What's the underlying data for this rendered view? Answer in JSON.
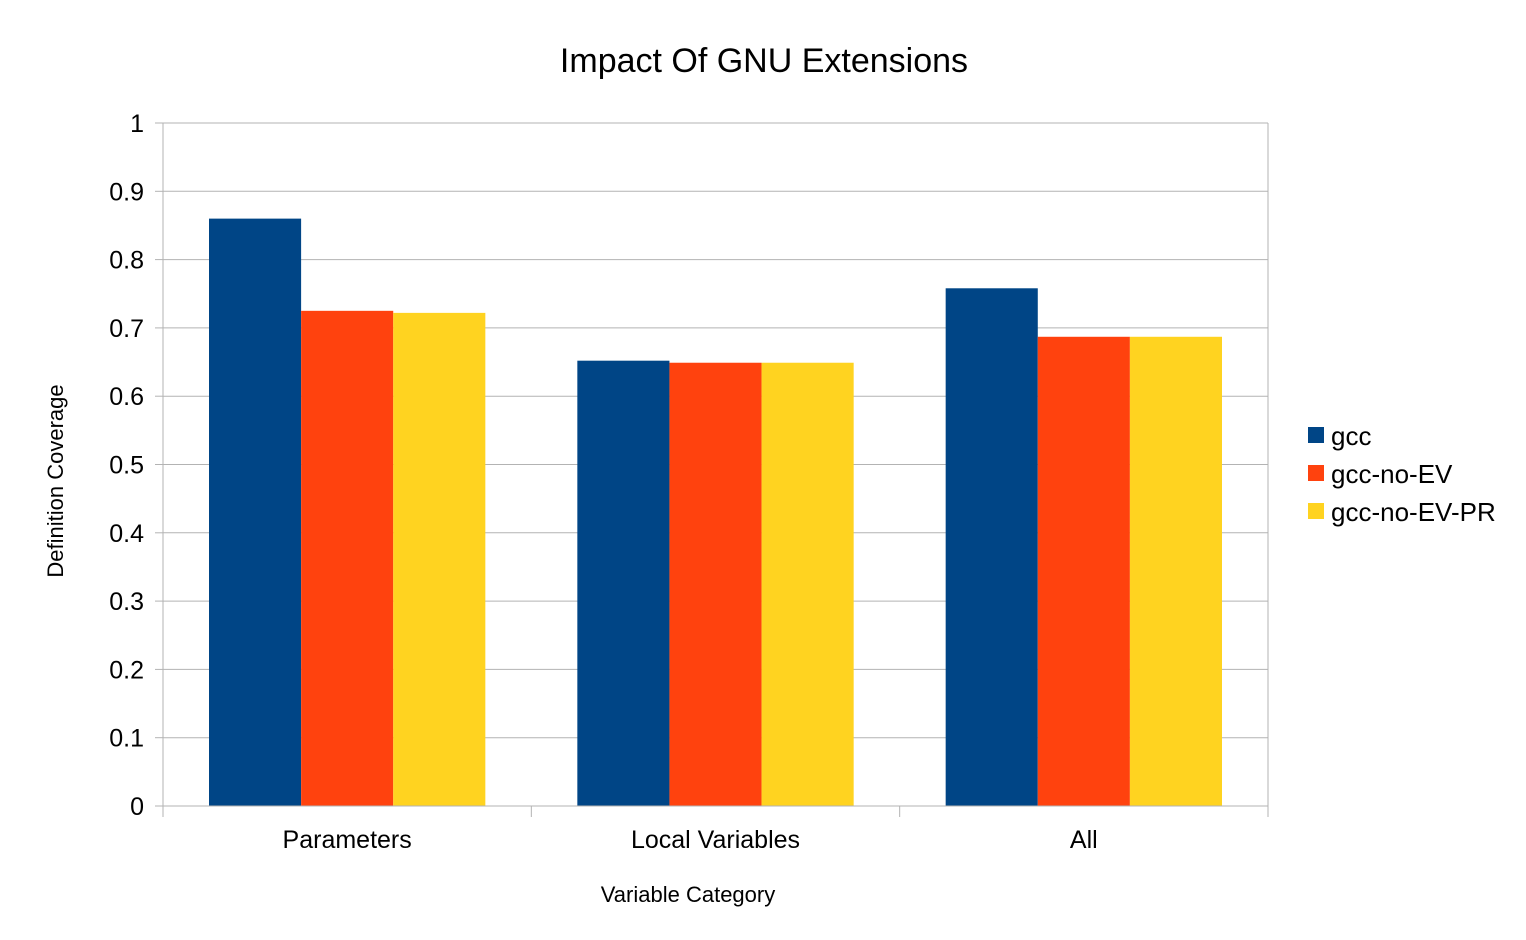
{
  "chart_data": {
    "type": "bar",
    "title": "Impact Of GNU Extensions",
    "xlabel": "Variable Category",
    "ylabel": "Definition Coverage",
    "categories": [
      "Parameters",
      "Local Variables",
      "All"
    ],
    "series": [
      {
        "name": "gcc",
        "color": "#004586",
        "values": [
          0.86,
          0.652,
          0.758
        ]
      },
      {
        "name": "gcc-no-EV",
        "color": "#ff420e",
        "values": [
          0.725,
          0.649,
          0.687
        ]
      },
      {
        "name": "gcc-no-EV-PR",
        "color": "#ffd320",
        "values": [
          0.722,
          0.649,
          0.687
        ]
      }
    ],
    "ylim": [
      0,
      1
    ],
    "yticks": [
      "0",
      "0.1",
      "0.2",
      "0.3",
      "0.4",
      "0.5",
      "0.6",
      "0.7",
      "0.8",
      "0.9",
      "1"
    ],
    "grid": true,
    "legend_position": "right"
  }
}
